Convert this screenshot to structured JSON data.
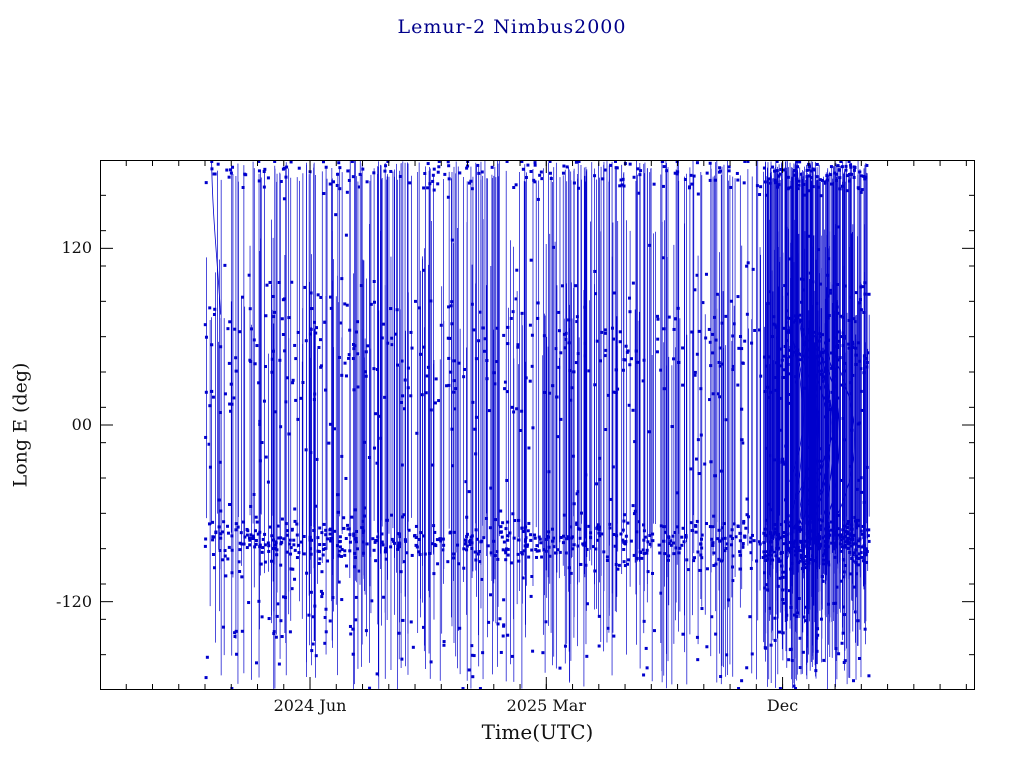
{
  "chart_data": {
    "type": "scatter",
    "title": "Lemur-2 Nimbus2000",
    "xlabel": "Time(UTC)",
    "ylabel": "Long E (deg)",
    "ylim": [
      -180,
      180
    ],
    "xlim_months": [
      0,
      33.33
    ],
    "x_ticks": [
      {
        "label": "2024 Jun",
        "month": 8
      },
      {
        "label": "2025 Mar",
        "month": 17
      },
      {
        "label": "Dec",
        "month": 26
      }
    ],
    "y_ticks": [
      {
        "label": "120",
        "value": 120
      },
      {
        "label": "00",
        "value": 0
      },
      {
        "label": "-120",
        "value": -120
      }
    ],
    "x_minor_step_months": 1,
    "y_minor_step": 24,
    "series_color": "#0000cc",
    "marker": "square",
    "marker_size": 3,
    "frame_color": "#000000",
    "title_color": "#00008b",
    "label_color": "#111111",
    "description": "Sub-satellite east longitude vs UTC time for Lemur-2 Nimbus2000; longitude wraps between -180 and +180 deg producing dense vertical connecting lines; dense horizontal marker clusters near -80 deg and +55 deg and along the +180 deg edge; heaviest overlapping passes with curved arc families between Nov 2025 and Feb 2026.",
    "generator": {
      "seed": 20240207,
      "data_month_range": [
        4.0,
        29.3
      ],
      "dense_month_range": [
        25.3,
        29.3
      ],
      "vertical_lines": 560,
      "dense_extra_lines": 170,
      "markers": 2000,
      "marker_dense_fraction": 0.22,
      "bands": [
        {
          "center": -80,
          "sigma": 9,
          "weight": 0.42
        },
        {
          "center": 55,
          "sigma": 22,
          "weight": 0.2
        },
        {
          "center": 170,
          "sigma": 6,
          "weight": 0.14
        },
        {
          "center": -140,
          "sigma": 20,
          "weight": 0.09
        },
        {
          "center": 20,
          "sigma": 60,
          "weight": 0.15
        }
      ],
      "arcs": 14,
      "intro_curve": {
        "month": 4.25,
        "end_lon": 75
      }
    }
  }
}
